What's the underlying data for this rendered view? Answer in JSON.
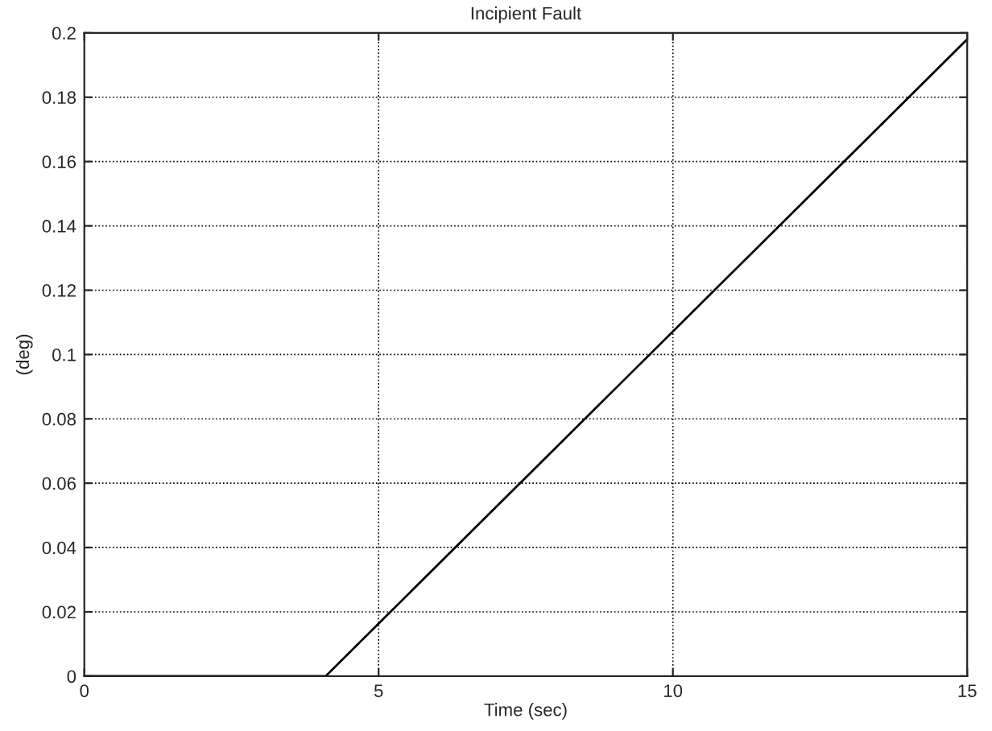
{
  "chart_data": {
    "type": "line",
    "title": "Incipient Fault",
    "xlabel": "Time (sec)",
    "ylabel": "(deg)",
    "x": [
      0,
      4.1,
      15
    ],
    "series": [
      {
        "color": "#000000",
        "values": [
          0,
          0,
          0.198
        ]
      }
    ],
    "xlim": [
      0,
      15
    ],
    "xticks": [
      0,
      5,
      10,
      15
    ],
    "ylim": [
      0,
      0.2
    ],
    "yticks": [
      0,
      0.02,
      0.04,
      0.06,
      0.08,
      0.1,
      0.12,
      0.14,
      0.16,
      0.18,
      0.2
    ],
    "grid": true,
    "line_style": "solid",
    "marker": "none",
    "legend": false
  }
}
